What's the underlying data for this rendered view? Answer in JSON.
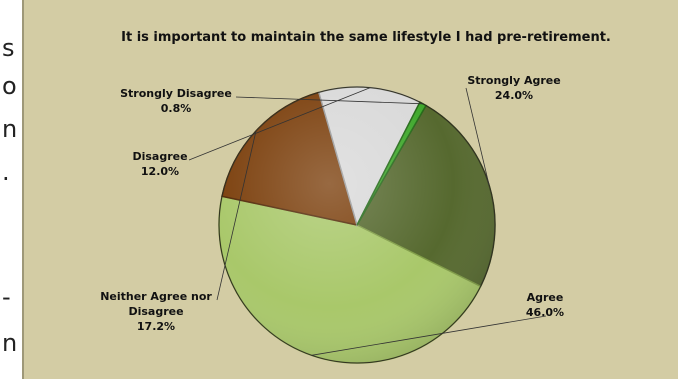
{
  "left_edge_fragments": [
    "s",
    "o",
    "n",
    ".",
    "-",
    "n"
  ],
  "chart_data": {
    "type": "pie",
    "title": "It is important to maintain the same lifestyle I had pre-retirement.",
    "slices": [
      {
        "label_lines": [
          "Strongly Agree"
        ],
        "value_text": "24.0%",
        "value": 24.0,
        "color": "#56692f",
        "edge": "#3c4a20"
      },
      {
        "label_lines": [
          "Agree"
        ],
        "value_text": "46.0%",
        "value": 46.0,
        "color": "#a9c86a",
        "edge": "#7f9c46"
      },
      {
        "label_lines": [
          "Neither Agree nor",
          "Disagree"
        ],
        "value_text": "17.2%",
        "value": 17.2,
        "color": "#7b3f0c",
        "edge": "#522806"
      },
      {
        "label_lines": [
          "Disagree"
        ],
        "value_text": "12.0%",
        "value": 12.0,
        "color": "#d9d9d9",
        "edge": "#9a9a9a"
      },
      {
        "label_lines": [
          "Strongly Disagree"
        ],
        "value_text": "0.8%",
        "value": 0.8,
        "color": "#3fa82c",
        "edge": "#256a18"
      }
    ],
    "start_angle_deg": -60,
    "direction": "clockwise",
    "legend": "none"
  }
}
